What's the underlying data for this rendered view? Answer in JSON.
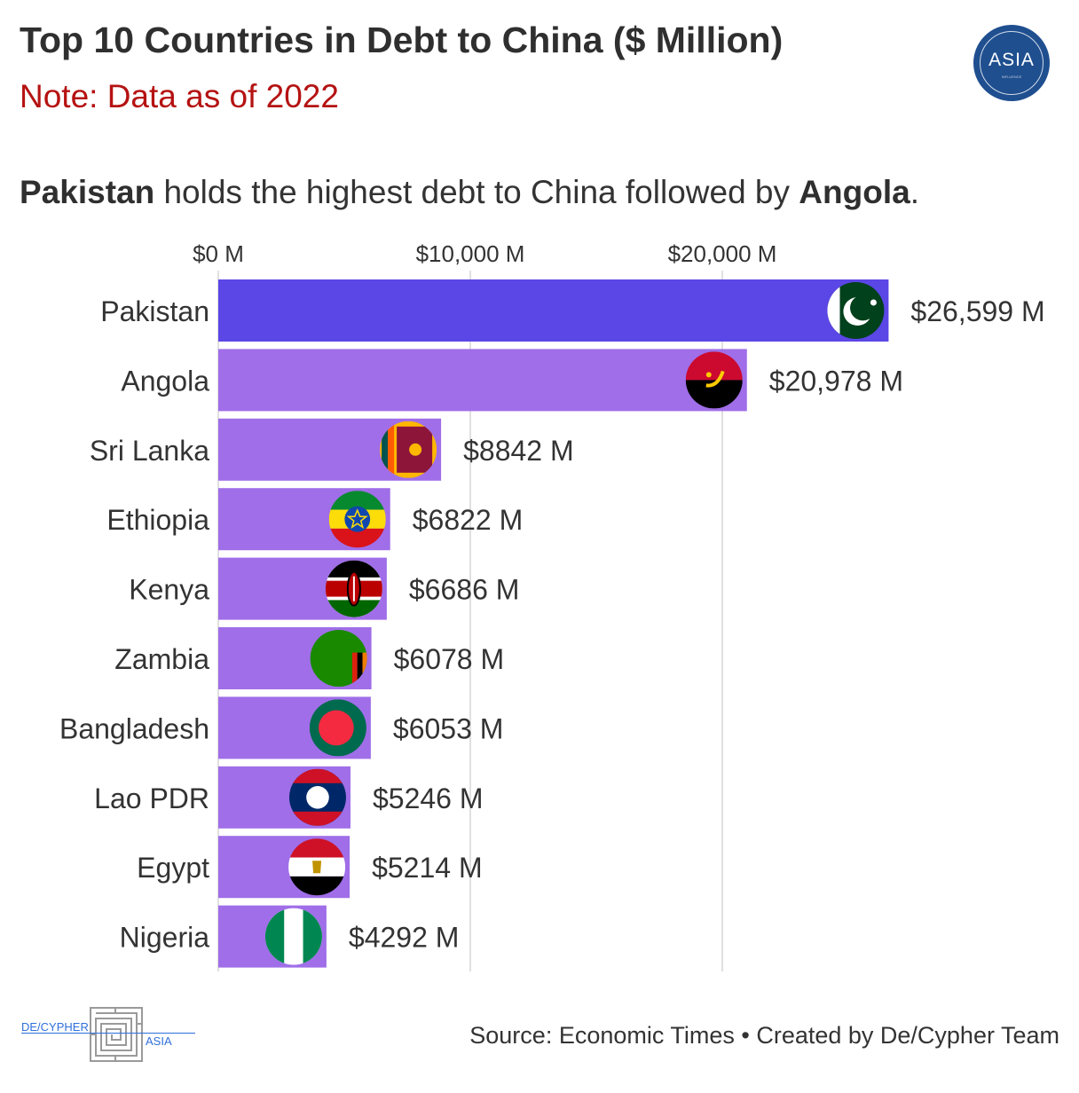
{
  "header": {
    "title": "Top 10 Countries in Debt to China ($ Million)",
    "note": "Note: Data as of 2022",
    "subtitle_bold_1": "Pakistan",
    "subtitle_mid": " holds the highest debt to China followed by ",
    "subtitle_bold_2": "Angola",
    "subtitle_end": "."
  },
  "logo": {
    "text": "ASIA",
    "subtext": "INFLUENCE"
  },
  "footer": {
    "source": "Source: Economic Times • Created by De/Cypher Team",
    "brand_left": "DE/CYPHER",
    "brand_right": "ASIA"
  },
  "colors": {
    "highlight_bar": "#5b46e6",
    "bar": "#a06ee8",
    "grid": "#d6d6d6"
  },
  "chart_data": {
    "type": "bar",
    "orientation": "horizontal",
    "categories": [
      "Pakistan",
      "Angola",
      "Sri Lanka",
      "Ethiopia",
      "Kenya",
      "Zambia",
      "Bangladesh",
      "Lao PDR",
      "Egypt",
      "Nigeria"
    ],
    "values": [
      26599,
      20978,
      8842,
      6822,
      6686,
      6078,
      6053,
      5246,
      5214,
      4292
    ],
    "value_labels": [
      "$26,599 M",
      "$20,978 M",
      "$8842 M",
      "$6822 M",
      "$6686 M",
      "$6078 M",
      "$6053 M",
      "$5246 M",
      "$5214 M",
      "$4292 M"
    ],
    "x_ticks": [
      0,
      10000,
      20000
    ],
    "x_tick_labels": [
      "$0 M",
      "$10,000 M",
      "$20,000 M"
    ],
    "xlim": [
      0,
      30000
    ],
    "flag_icons": [
      "pakistan-flag-icon",
      "angola-flag-icon",
      "sri-lanka-flag-icon",
      "ethiopia-flag-icon",
      "kenya-flag-icon",
      "zambia-flag-icon",
      "bangladesh-flag-icon",
      "lao-flag-icon",
      "egypt-flag-icon",
      "nigeria-flag-icon"
    ],
    "grid": true
  }
}
